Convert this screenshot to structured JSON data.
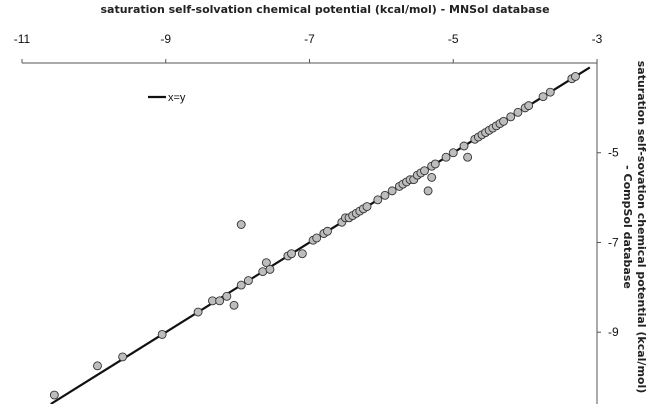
{
  "chart_data": {
    "type": "scatter",
    "title": "",
    "xlabel": "saturation self-solvation chemical potential (kcal/mol) - MNSol database",
    "ylabel": "saturation self-sovation chemical potential (kcal/mol) - CompSol database",
    "x_axis_position": "top",
    "y_axis_position": "right",
    "xlim": [
      -11,
      -3
    ],
    "ylim": [
      -10.6,
      -3
    ],
    "y_reversed": true,
    "x_ticks": [
      "-11",
      "-9",
      "-7",
      "-5",
      "-3"
    ],
    "y_ticks": [
      "-5",
      "-7",
      "-9"
    ],
    "grid": false,
    "legend": {
      "position": "top-left",
      "entries": [
        "x=y"
      ]
    },
    "reference_line": {
      "name": "x=y",
      "x": [
        -10.6,
        -3.1
      ],
      "y": [
        -10.6,
        -3.1
      ]
    },
    "points": {
      "x": [
        -10.55,
        -9.95,
        -9.6,
        -9.05,
        -8.55,
        -8.35,
        -8.25,
        -8.15,
        -8.05,
        -7.95,
        -7.95,
        -7.85,
        -7.65,
        -7.6,
        -7.55,
        -7.3,
        -7.25,
        -7.1,
        -6.95,
        -6.9,
        -6.8,
        -6.75,
        -6.55,
        -6.5,
        -6.45,
        -6.4,
        -6.35,
        -6.3,
        -6.25,
        -6.2,
        -6.05,
        -5.95,
        -5.85,
        -5.75,
        -5.7,
        -5.65,
        -5.6,
        -5.55,
        -5.5,
        -5.45,
        -5.4,
        -5.35,
        -5.3,
        -5.3,
        -5.25,
        -5.1,
        -5.0,
        -4.85,
        -4.8,
        -4.7,
        -4.65,
        -4.6,
        -4.55,
        -4.5,
        -4.45,
        -4.4,
        -4.35,
        -4.3,
        -4.2,
        -4.1,
        -4.0,
        -3.95,
        -3.75,
        -3.65,
        -3.35,
        -3.3
      ],
      "y": [
        -10.4,
        -9.75,
        -9.55,
        -9.05,
        -8.55,
        -8.3,
        -8.3,
        -8.2,
        -8.4,
        -7.95,
        -6.6,
        -7.85,
        -7.65,
        -7.45,
        -7.6,
        -7.3,
        -7.25,
        -7.25,
        -6.95,
        -6.9,
        -6.8,
        -6.75,
        -6.55,
        -6.45,
        -6.45,
        -6.4,
        -6.35,
        -6.3,
        -6.25,
        -6.2,
        -6.05,
        -5.95,
        -5.85,
        -5.75,
        -5.7,
        -5.65,
        -5.6,
        -5.6,
        -5.5,
        -5.45,
        -5.4,
        -5.85,
        -5.3,
        -5.55,
        -5.25,
        -5.1,
        -5.0,
        -4.85,
        -5.1,
        -4.7,
        -4.65,
        -4.6,
        -4.55,
        -4.5,
        -4.45,
        -4.4,
        -4.35,
        -4.3,
        -4.2,
        -4.1,
        -4.0,
        -3.95,
        -3.75,
        -3.65,
        -3.35,
        -3.3
      ]
    }
  }
}
